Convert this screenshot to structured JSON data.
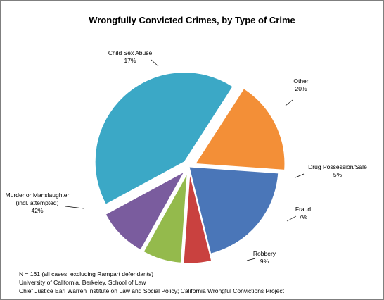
{
  "chart_data": {
    "type": "pie",
    "title": "Wrongfully Convicted Crimes, by Type of Crime",
    "slices": [
      {
        "name": "Other",
        "value": 20,
        "label_lines": [
          "Other"
        ],
        "pct": "20%",
        "color": "#4a76b8",
        "explode": 0
      },
      {
        "name": "Drug Possession/Sale",
        "value": 5,
        "label_lines": [
          "Drug Possession/Sale"
        ],
        "pct": "5%",
        "color": "#c9413f",
        "explode": 1
      },
      {
        "name": "Fraud",
        "value": 7,
        "label_lines": [
          "Fraud"
        ],
        "pct": "7%",
        "color": "#94ba4c",
        "explode": 1
      },
      {
        "name": "Robbery",
        "value": 9,
        "label_lines": [
          "Robbery"
        ],
        "pct": "9%",
        "color": "#7a5c9e",
        "explode": 1
      },
      {
        "name": "Murder or Manslaughter (incl. attempted)",
        "value": 42,
        "label_lines": [
          "Murder or Manslaughter",
          "(incl. attempted)"
        ],
        "pct": "42%",
        "color": "#3ba8c6",
        "explode": 1
      },
      {
        "name": "Child Sex Abuse",
        "value": 17,
        "label_lines": [
          "Child Sex Abuse"
        ],
        "pct": "17%",
        "color": "#f38f37",
        "explode": 1
      }
    ]
  },
  "footnotes": [
    "N = 161 (all cases, excluding Rampart defendants)",
    "University of California, Berkeley, School of Law",
    "Chief Justice Earl Warren Institute on Law and Social Policy; California Wrongful Convictions Project"
  ]
}
